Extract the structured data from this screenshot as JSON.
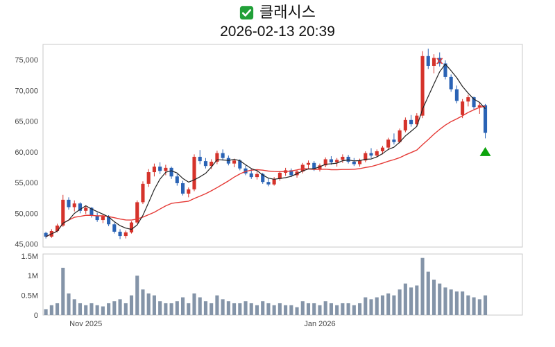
{
  "header": {
    "icon": {
      "name": "green-checkbox",
      "glyph": "✅"
    },
    "title": "클래시스",
    "datetime": "2026-02-13 20:39"
  },
  "chart_data": {
    "type": "candlestick",
    "title": "클래시스",
    "subtitle": "2026-02-13 20:39",
    "price_unit": "KRW, prices stored in thousands",
    "grid": false,
    "legend": false,
    "price_axis": {
      "min": 44.5,
      "max": 77.5,
      "ticks": [
        {
          "value": 45,
          "label": "45,000"
        },
        {
          "value": 50,
          "label": "50,000"
        },
        {
          "value": 55,
          "label": "55,000"
        },
        {
          "value": 60,
          "label": "60,000"
        },
        {
          "value": 65,
          "label": "65,000"
        },
        {
          "value": 70,
          "label": "70,000"
        },
        {
          "value": 75,
          "label": "75,000"
        }
      ]
    },
    "volume_axis": {
      "max": 1.55,
      "unit": "millions of shares",
      "ticks": [
        {
          "value": 0,
          "label": "0"
        },
        {
          "value": 0.5,
          "label": "0.5M"
        },
        {
          "value": 1,
          "label": "1M"
        },
        {
          "value": 1.5,
          "label": "1.5M"
        }
      ]
    },
    "x_axis": {
      "labels": [
        {
          "index": 7,
          "label": "Nov 2025"
        },
        {
          "index": 48,
          "label": "Jan 2026"
        }
      ],
      "right_padding_slots": 6
    },
    "ma_short": {
      "window": 5
    },
    "ma_long": {
      "window": 20
    },
    "colors": {
      "up": "#d5332b",
      "down": "#2a63b5",
      "ma_short": "#222222",
      "ma_long": "#e53935",
      "volume": "#8494a8",
      "border": "#c8c8c8",
      "axis_text": "#444444",
      "marker_up": "#0ca30c",
      "marker_x": "#e53935",
      "background": "#ffffff"
    },
    "candle_format": [
      "open",
      "high",
      "low",
      "close",
      "volume_millions"
    ],
    "candles": [
      [
        46.8,
        47.0,
        45.9,
        46.2,
        0.15
      ],
      [
        46.2,
        47.4,
        46.0,
        47.1,
        0.25
      ],
      [
        47.1,
        48.3,
        46.9,
        48.0,
        0.3
      ],
      [
        48.0,
        53.0,
        47.8,
        52.2,
        1.2
      ],
      [
        52.2,
        52.6,
        50.6,
        51.0,
        0.55
      ],
      [
        51.0,
        52.1,
        50.3,
        51.6,
        0.4
      ],
      [
        51.6,
        51.8,
        50.0,
        50.4,
        0.3
      ],
      [
        50.4,
        51.3,
        49.9,
        50.9,
        0.25
      ],
      [
        50.9,
        51.0,
        49.3,
        49.6,
        0.3
      ],
      [
        49.6,
        50.1,
        48.6,
        48.9,
        0.25
      ],
      [
        48.9,
        49.9,
        48.4,
        49.5,
        0.22
      ],
      [
        49.5,
        49.7,
        47.9,
        48.2,
        0.3
      ],
      [
        48.2,
        48.5,
        46.7,
        47.0,
        0.35
      ],
      [
        47.0,
        47.4,
        45.8,
        46.3,
        0.4
      ],
      [
        46.3,
        47.2,
        45.9,
        46.9,
        0.3
      ],
      [
        46.9,
        48.7,
        46.7,
        48.5,
        0.5
      ],
      [
        48.5,
        52.1,
        48.3,
        51.8,
        1.0
      ],
      [
        51.8,
        55.2,
        51.5,
        54.8,
        0.65
      ],
      [
        54.8,
        57.2,
        54.3,
        56.7,
        0.55
      ],
      [
        56.7,
        58.1,
        56.0,
        57.6,
        0.5
      ],
      [
        57.6,
        58.3,
        56.4,
        56.9,
        0.35
      ],
      [
        56.9,
        57.9,
        56.2,
        57.4,
        0.3
      ],
      [
        57.4,
        57.6,
        55.6,
        56.0,
        0.3
      ],
      [
        56.0,
        56.4,
        54.5,
        54.9,
        0.35
      ],
      [
        54.9,
        55.3,
        52.9,
        53.2,
        0.45
      ],
      [
        53.2,
        54.2,
        52.6,
        53.9,
        0.3
      ],
      [
        53.9,
        59.6,
        53.6,
        59.2,
        0.55
      ],
      [
        59.2,
        60.3,
        58.0,
        58.5,
        0.45
      ],
      [
        58.5,
        59.0,
        57.3,
        57.7,
        0.35
      ],
      [
        57.7,
        58.8,
        57.2,
        58.4,
        0.3
      ],
      [
        58.4,
        60.2,
        58.0,
        59.8,
        0.5
      ],
      [
        59.8,
        60.4,
        58.6,
        59.0,
        0.4
      ],
      [
        59.0,
        59.4,
        57.8,
        58.1,
        0.35
      ],
      [
        58.1,
        58.9,
        57.5,
        58.6,
        0.3
      ],
      [
        58.6,
        58.8,
        57.0,
        57.3,
        0.3
      ],
      [
        57.3,
        57.8,
        56.2,
        56.5,
        0.35
      ],
      [
        56.5,
        57.2,
        55.6,
        55.9,
        0.3
      ],
      [
        55.9,
        56.8,
        55.5,
        56.4,
        0.25
      ],
      [
        56.4,
        56.6,
        54.8,
        55.1,
        0.35
      ],
      [
        55.1,
        55.7,
        54.4,
        54.7,
        0.3
      ],
      [
        54.7,
        55.9,
        54.5,
        55.6,
        0.25
      ],
      [
        55.6,
        56.9,
        55.3,
        56.6,
        0.3
      ],
      [
        56.6,
        57.4,
        56.1,
        57.0,
        0.25
      ],
      [
        57.0,
        57.3,
        55.9,
        56.2,
        0.25
      ],
      [
        56.2,
        57.1,
        55.8,
        56.8,
        0.2
      ],
      [
        56.8,
        58.2,
        56.5,
        57.9,
        0.35
      ],
      [
        57.9,
        58.6,
        57.2,
        58.2,
        0.3
      ],
      [
        58.2,
        58.5,
        56.9,
        57.2,
        0.3
      ],
      [
        57.2,
        58.1,
        56.8,
        57.8,
        0.25
      ],
      [
        57.8,
        59.1,
        57.5,
        58.8,
        0.35
      ],
      [
        58.8,
        59.3,
        57.9,
        58.3,
        0.3
      ],
      [
        58.3,
        59.0,
        57.6,
        58.7,
        0.25
      ],
      [
        58.7,
        59.6,
        58.2,
        59.2,
        0.3
      ],
      [
        59.2,
        59.5,
        58.1,
        58.4,
        0.3
      ],
      [
        58.4,
        59.0,
        57.7,
        58.0,
        0.25
      ],
      [
        58.0,
        58.9,
        57.6,
        58.6,
        0.3
      ],
      [
        58.6,
        60.1,
        58.3,
        59.8,
        0.45
      ],
      [
        59.8,
        60.6,
        59.0,
        59.4,
        0.4
      ],
      [
        59.4,
        60.4,
        59.1,
        60.1,
        0.45
      ],
      [
        60.1,
        61.0,
        59.6,
        60.7,
        0.5
      ],
      [
        60.7,
        62.3,
        60.3,
        62.0,
        0.55
      ],
      [
        62.0,
        63.0,
        61.2,
        61.6,
        0.5
      ],
      [
        61.6,
        63.8,
        61.4,
        63.5,
        0.65
      ],
      [
        63.5,
        65.6,
        63.2,
        65.2,
        0.8
      ],
      [
        65.2,
        66.0,
        64.1,
        64.5,
        0.7
      ],
      [
        64.5,
        66.3,
        64.2,
        65.9,
        0.75
      ],
      [
        65.9,
        76.4,
        65.5,
        75.6,
        1.45
      ],
      [
        75.6,
        76.8,
        73.5,
        74.0,
        1.1
      ],
      [
        74.0,
        75.9,
        72.8,
        75.3,
        0.9
      ],
      [
        75.3,
        76.2,
        73.9,
        74.4,
        0.8
      ],
      [
        74.4,
        74.9,
        71.8,
        72.2,
        0.7
      ],
      [
        72.2,
        72.6,
        69.8,
        70.2,
        0.65
      ],
      [
        70.2,
        70.8,
        67.9,
        68.3,
        0.6
      ],
      [
        66.0,
        68.6,
        65.5,
        68.2,
        0.6
      ],
      [
        68.2,
        69.3,
        67.4,
        68.9,
        0.5
      ],
      [
        68.9,
        69.0,
        66.9,
        67.3,
        0.45
      ],
      [
        67.3,
        68.0,
        66.2,
        67.6,
        0.4
      ],
      [
        67.6,
        67.8,
        62.2,
        63.1,
        0.5
      ]
    ],
    "markers": [
      {
        "type": "x",
        "index": 69,
        "price": 74.8
      },
      {
        "type": "triangle-up",
        "index": 77,
        "price": 60.0
      }
    ]
  }
}
